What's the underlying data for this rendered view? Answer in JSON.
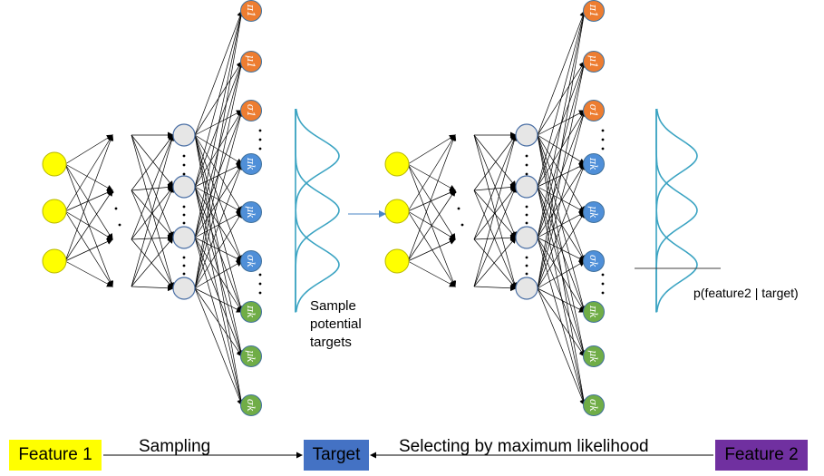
{
  "colors": {
    "input_node": "#ffff00",
    "hidden_node": "#e6e6e6",
    "pi_sigma_node": "#ed7d31",
    "blue_node": "#4f8fd8",
    "green_node": "#70ad47",
    "curve": "#3aa3c2",
    "feature1_box": "#ffff00",
    "target_box": "#4472c4",
    "feature2_box": "#7030a0"
  },
  "symbols": {
    "pi1": "π1",
    "mu1": "μ1",
    "sigma1": "σ1",
    "pik": "πk",
    "muk": "μk",
    "sigmak": "σk",
    "vdots": "⋮"
  },
  "labels": {
    "sample_line1": "Sample",
    "sample_line2": "potential",
    "sample_line3": "targets",
    "likelihood": "p(feature2 | target)"
  },
  "bottom": {
    "feature1": "Feature 1",
    "sampling": "Sampling",
    "target": "Target",
    "selecting": "Selecting by maximum likelihood",
    "feature2": "Feature 2"
  }
}
